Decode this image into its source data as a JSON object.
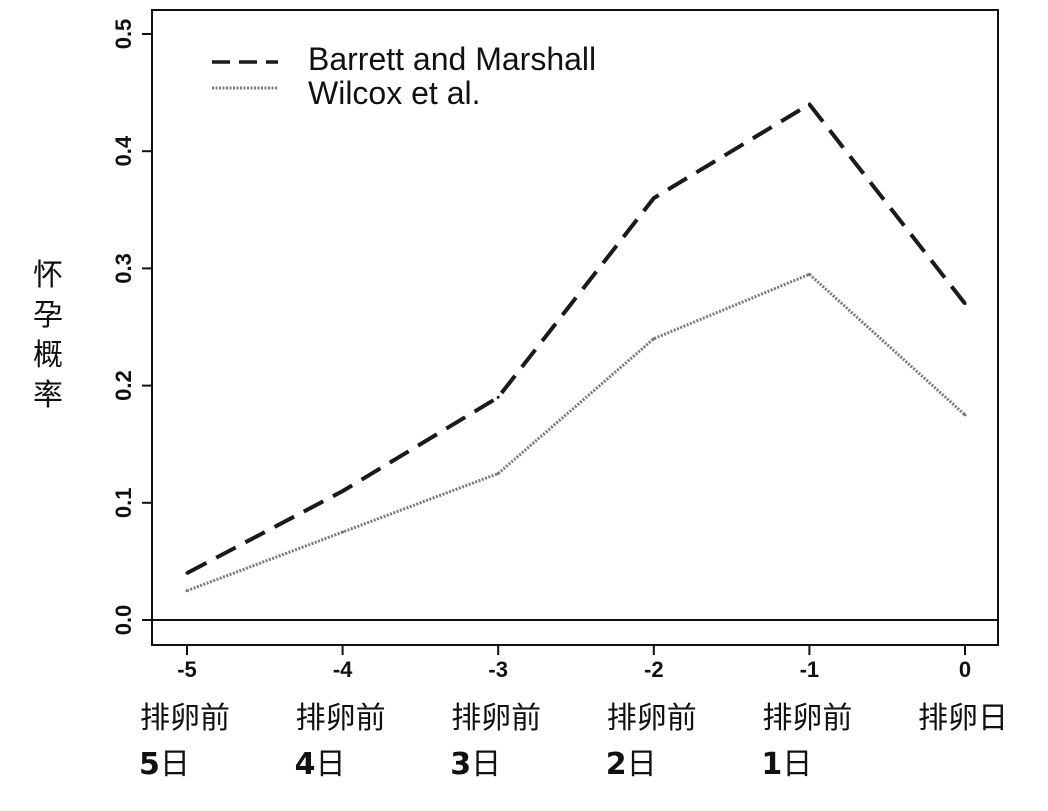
{
  "chart_data": {
    "type": "line",
    "title": "",
    "xlabel": "",
    "ylabel": "怀孕概率",
    "x": [
      -5,
      -4,
      -3,
      -2,
      -1,
      0
    ],
    "x_tick_labels": [
      "-5",
      "-4",
      "-3",
      "-2",
      "-1",
      "0"
    ],
    "categories": [
      [
        "排卵前",
        "5日"
      ],
      [
        "排卵前",
        "4日"
      ],
      [
        "排卵前",
        "3日"
      ],
      [
        "排卵前",
        "2日"
      ],
      [
        "排卵前",
        "1日"
      ],
      [
        "排卵日"
      ]
    ],
    "y_ticks": [
      0.0,
      0.1,
      0.2,
      0.3,
      0.4,
      0.5
    ],
    "y_tick_labels": [
      "0.0",
      "0.1",
      "0.2",
      "0.3",
      "0.4",
      "0.5"
    ],
    "ylim": [
      -0.02,
      0.52
    ],
    "xlim": [
      -5.2,
      0.2
    ],
    "grid": false,
    "legend_position": "top-left",
    "baseline": 0.0,
    "series": [
      {
        "name": "Barrett and Marshall",
        "style": "dashed",
        "color": "#1a1a1a",
        "values": [
          0.04,
          0.11,
          0.19,
          0.36,
          0.44,
          0.27
        ]
      },
      {
        "name": "Wilcox et al.",
        "style": "dotted",
        "color": "#7a7a7a",
        "values": [
          0.025,
          0.075,
          0.125,
          0.24,
          0.295,
          0.175
        ]
      }
    ]
  }
}
